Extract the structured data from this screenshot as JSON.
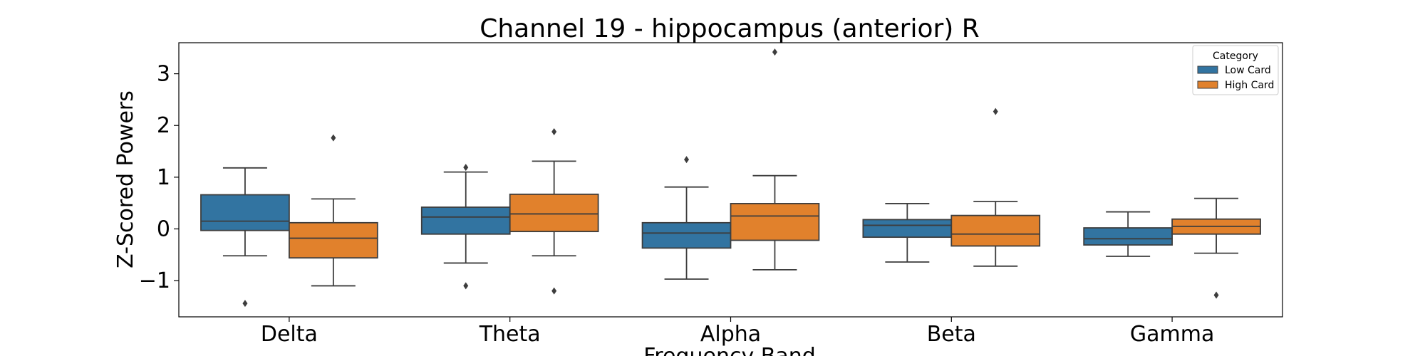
{
  "chart_data": {
    "type": "box",
    "title": "Channel 19 - hippocampus (anterior) R",
    "xlabel": "Frequency Band",
    "ylabel": "Z-Scored Powers",
    "categories": [
      "Delta",
      "Theta",
      "Alpha",
      "Beta",
      "Gamma"
    ],
    "ylim": [
      -1.7,
      3.6
    ],
    "yticks": [
      -1,
      0,
      1,
      2,
      3
    ],
    "ytick_labels": [
      "−1",
      "0",
      "1",
      "2",
      "3"
    ],
    "grid": false,
    "legend": {
      "title": "Category",
      "position": "top-right"
    },
    "series": [
      {
        "name": "Low Card",
        "color": "#3274a1",
        "boxes": [
          {
            "whisker_low": -0.52,
            "q1": -0.03,
            "median": 0.15,
            "q3": 0.66,
            "whisker_high": 1.18,
            "outliers": [
              -1.44
            ]
          },
          {
            "whisker_low": -0.66,
            "q1": -0.1,
            "median": 0.23,
            "q3": 0.42,
            "whisker_high": 1.1,
            "outliers": [
              1.19,
              -1.1
            ]
          },
          {
            "whisker_low": -0.97,
            "q1": -0.37,
            "median": -0.08,
            "q3": 0.12,
            "whisker_high": 0.81,
            "outliers": [
              1.34
            ]
          },
          {
            "whisker_low": -0.64,
            "q1": -0.16,
            "median": 0.07,
            "q3": 0.18,
            "whisker_high": 0.49,
            "outliers": []
          },
          {
            "whisker_low": -0.53,
            "q1": -0.31,
            "median": -0.19,
            "q3": 0.02,
            "whisker_high": 0.33,
            "outliers": []
          }
        ]
      },
      {
        "name": "High Card",
        "color": "#e1812c",
        "boxes": [
          {
            "whisker_low": -1.1,
            "q1": -0.56,
            "median": -0.18,
            "q3": 0.12,
            "whisker_high": 0.58,
            "outliers": [
              1.76
            ]
          },
          {
            "whisker_low": -0.52,
            "q1": -0.05,
            "median": 0.29,
            "q3": 0.67,
            "whisker_high": 1.31,
            "outliers": [
              1.88,
              -1.2
            ]
          },
          {
            "whisker_low": -0.79,
            "q1": -0.22,
            "median": 0.25,
            "q3": 0.49,
            "whisker_high": 1.03,
            "outliers": [
              3.42
            ]
          },
          {
            "whisker_low": -0.72,
            "q1": -0.33,
            "median": -0.1,
            "q3": 0.26,
            "whisker_high": 0.53,
            "outliers": [
              2.27
            ]
          },
          {
            "whisker_low": -0.47,
            "q1": -0.1,
            "median": 0.05,
            "q3": 0.19,
            "whisker_high": 0.59,
            "outliers": [
              -1.28
            ]
          }
        ]
      }
    ]
  }
}
